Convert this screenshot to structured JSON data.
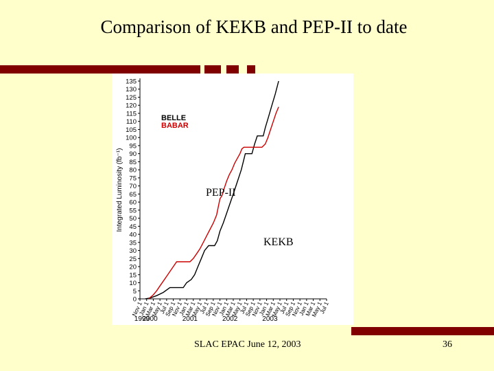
{
  "slide": {
    "title": "Comparison of KEKB and PEP-II to date",
    "footer_left": "SLAC EPAC June 12, 2003",
    "page_number": "36",
    "callout_pep": "PEP-II",
    "callout_kekb": "KEKB",
    "accent_color": "#800000",
    "background_color": "#ffffcc"
  },
  "chart_data": {
    "type": "line",
    "ylabel": "Integrated Luminosity (fb⁻¹)",
    "xlabel": "",
    "ylim": [
      0,
      135
    ],
    "y_ticks": [
      0,
      5,
      10,
      15,
      20,
      25,
      30,
      35,
      40,
      45,
      50,
      55,
      60,
      65,
      70,
      75,
      80,
      85,
      90,
      95,
      100,
      105,
      110,
      115,
      120,
      125,
      130,
      135
    ],
    "x_ticks": [
      "Nov 1",
      "Jan 1",
      "Mar 1",
      "May 1",
      "Jul 1",
      "Sep 1",
      "Nov 1",
      "Jan 1",
      "Mar 1",
      "May 1",
      "Jul 1",
      "Sep 1",
      "Nov 1",
      "Jan 1",
      "Mar 1",
      "May 1",
      "Jul 1",
      "Sep 1",
      "Nov 1",
      "Jan 1",
      "Mar 1",
      "May 1",
      "Jul 1",
      "Sep 1",
      "Nov 1",
      "Jan 1",
      "Mar 1",
      "May 1",
      "Jul 1"
    ],
    "year_labels": [
      {
        "label": "1999",
        "tick_index": 0.3
      },
      {
        "label": "2000",
        "tick_index": 1.5
      },
      {
        "label": "2001",
        "tick_index": 7.5
      },
      {
        "label": "2002",
        "tick_index": 13.5
      },
      {
        "label": "2003",
        "tick_index": 19.5
      }
    ],
    "legend": {
      "placement": "top-left",
      "entries": [
        "BELLE",
        "BABAR"
      ]
    },
    "series": [
      {
        "name": "BELLE",
        "color": "#000000",
        "points": [
          [
            0.8,
            0
          ],
          [
            1.5,
            0.5
          ],
          [
            2.5,
            2
          ],
          [
            3.5,
            4
          ],
          [
            4.5,
            7
          ],
          [
            5.5,
            7
          ],
          [
            6.5,
            7
          ],
          [
            7,
            10
          ],
          [
            7.7,
            12
          ],
          [
            8.2,
            15
          ],
          [
            8.7,
            20
          ],
          [
            9.2,
            25
          ],
          [
            9.7,
            30
          ],
          [
            10.3,
            33
          ],
          [
            11.2,
            33
          ],
          [
            11.6,
            36
          ],
          [
            12,
            42
          ],
          [
            12.5,
            47
          ],
          [
            13,
            53
          ],
          [
            13.5,
            59
          ],
          [
            14,
            65
          ],
          [
            14.4,
            70
          ],
          [
            14.8,
            75
          ],
          [
            15.2,
            80
          ],
          [
            15.5,
            85
          ],
          [
            15.8,
            90
          ],
          [
            16.8,
            90
          ],
          [
            17.2,
            96
          ],
          [
            17.6,
            101
          ],
          [
            18.5,
            101
          ],
          [
            18.8,
            106
          ],
          [
            19.3,
            113
          ],
          [
            19.8,
            120
          ],
          [
            20.3,
            127
          ],
          [
            20.8,
            135
          ]
        ]
      },
      {
        "name": "BABAR",
        "color": "#cc0000",
        "points": [
          [
            1.3,
            0
          ],
          [
            2,
            2.5
          ],
          [
            2.5,
            5
          ],
          [
            3,
            8
          ],
          [
            3.5,
            11
          ],
          [
            4,
            14
          ],
          [
            4.5,
            17
          ],
          [
            5,
            20
          ],
          [
            5.5,
            23
          ],
          [
            6.5,
            23
          ],
          [
            7.5,
            23
          ],
          [
            8,
            25
          ],
          [
            8.5,
            28
          ],
          [
            9,
            31
          ],
          [
            9.5,
            35
          ],
          [
            10,
            39
          ],
          [
            10.5,
            43
          ],
          [
            11,
            47
          ],
          [
            11.5,
            52
          ],
          [
            11.8,
            58
          ],
          [
            12,
            62
          ],
          [
            12.3,
            64
          ],
          [
            12.6,
            68
          ],
          [
            13,
            73
          ],
          [
            13.4,
            77
          ],
          [
            13.8,
            80
          ],
          [
            14.2,
            84
          ],
          [
            14.6,
            87
          ],
          [
            15,
            90
          ],
          [
            15.3,
            93
          ],
          [
            15.6,
            94
          ],
          [
            16.5,
            94
          ],
          [
            17.5,
            94
          ],
          [
            18.3,
            94
          ],
          [
            18.8,
            96
          ],
          [
            19.2,
            100
          ],
          [
            19.6,
            105
          ],
          [
            20,
            110
          ],
          [
            20.4,
            115
          ],
          [
            20.8,
            119
          ]
        ]
      }
    ]
  }
}
